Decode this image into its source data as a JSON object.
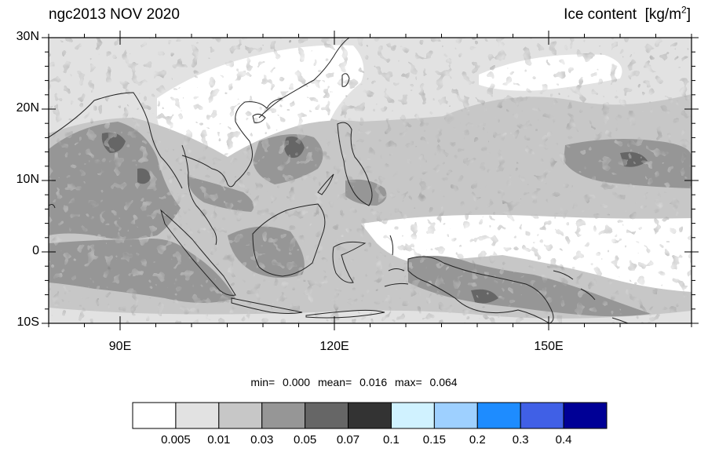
{
  "title": {
    "left": "ngc2013 NOV 2020",
    "right": "Ice content",
    "units_prefix": "[kg/m",
    "units_sup": "2",
    "units_suffix": "]"
  },
  "map": {
    "lon_range": [
      80,
      170
    ],
    "lat_range": [
      -10,
      30
    ],
    "y_ticks": [
      {
        "value": 30,
        "label": "30N"
      },
      {
        "value": 20,
        "label": "20N"
      },
      {
        "value": 10,
        "label": "10N"
      },
      {
        "value": 0,
        "label": "0"
      },
      {
        "value": -10,
        "label": "10S"
      }
    ],
    "x_ticks": [
      {
        "value": 90,
        "label": "90E"
      },
      {
        "value": 120,
        "label": "120E"
      },
      {
        "value": 150,
        "label": "150E"
      }
    ]
  },
  "stats": {
    "min_label": "min=",
    "min": "0.000",
    "mean_label": "mean=",
    "mean": "0.016",
    "max_label": "max=",
    "max": "0.064"
  },
  "colorbar": {
    "colors": [
      "#ffffff",
      "#e2e2e2",
      "#c7c7c7",
      "#969696",
      "#666666",
      "#333333",
      "#d0f2ff",
      "#9ed0ff",
      "#1e8cff",
      "#4060e6",
      "#000096"
    ],
    "labels": [
      "0.005",
      "0.01",
      "0.03",
      "0.05",
      "0.07",
      "0.1",
      "0.15",
      "0.2",
      "0.3",
      "0.4"
    ]
  },
  "field_levels": {
    "white": "#ffffff",
    "light": "#e2e2e2",
    "mid": "#c7c7c7",
    "dark": "#969696",
    "darker": "#666666"
  }
}
